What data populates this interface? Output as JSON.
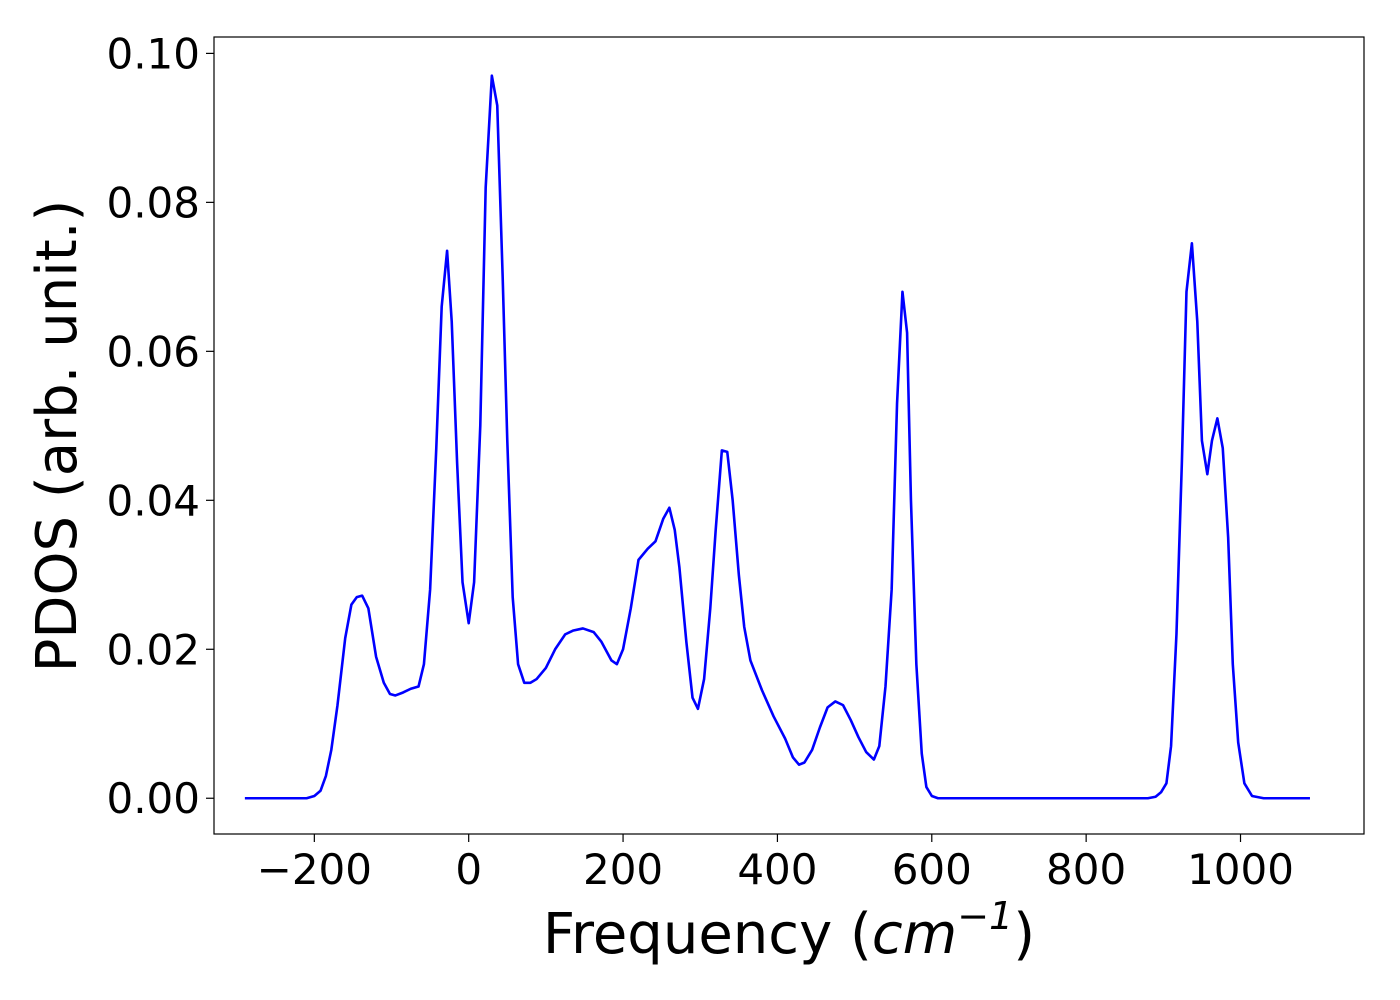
{
  "chart_data": {
    "type": "line",
    "title": "",
    "xlabel": "Frequency (",
    "xlabel_unit_base": "cm",
    "xlabel_unit_exp": "−1",
    "xlabel_close": ")",
    "ylabel": "PDOS (arb. unit.)",
    "xlim": [
      -330,
      1160
    ],
    "ylim": [
      -0.0048,
      0.1022
    ],
    "x_ticks": [
      -200,
      0,
      200,
      400,
      600,
      800,
      1000
    ],
    "x_tick_labels": [
      "−200",
      "0",
      "200",
      "400",
      "600",
      "800",
      "1000"
    ],
    "y_ticks": [
      0.0,
      0.02,
      0.04,
      0.06,
      0.08,
      0.1
    ],
    "y_tick_labels": [
      "0.00",
      "0.02",
      "0.04",
      "0.06",
      "0.08",
      "0.10"
    ],
    "grid": false,
    "legend": "none",
    "series": [
      {
        "color": "#0000ff",
        "x": [
          -290,
          -250,
          -210,
          -200,
          -192,
          -185,
          -178,
          -170,
          -160,
          -152,
          -145,
          -138,
          -130,
          -120,
          -110,
          -102,
          -95,
          -85,
          -75,
          -65,
          -58,
          -50,
          -42,
          -35,
          -28,
          -22,
          -15,
          -8,
          0,
          7,
          15,
          22,
          30,
          37,
          44,
          50,
          57,
          64,
          72,
          80,
          88,
          100,
          112,
          125,
          135,
          148,
          162,
          172,
          185,
          192,
          200,
          210,
          220,
          232,
          242,
          252,
          260,
          267,
          273,
          282,
          290,
          297,
          305,
          313,
          320,
          328,
          335,
          342,
          350,
          357,
          365,
          380,
          395,
          410,
          420,
          428,
          435,
          445,
          455,
          465,
          475,
          485,
          495,
          505,
          515,
          525,
          532,
          540,
          548,
          555,
          562,
          568,
          573,
          580,
          587,
          593,
          600,
          608,
          620,
          650,
          700,
          800,
          880,
          890,
          897,
          904,
          910,
          917,
          924,
          930,
          937,
          944,
          950,
          957,
          963,
          970,
          977,
          984,
          990,
          997,
          1005,
          1015,
          1030,
          1090
        ],
        "y": [
          0.0,
          0.0,
          0.0,
          0.0003,
          0.001,
          0.003,
          0.0065,
          0.0125,
          0.0215,
          0.026,
          0.027,
          0.0272,
          0.0255,
          0.019,
          0.0155,
          0.014,
          0.0138,
          0.0142,
          0.0147,
          0.015,
          0.018,
          0.028,
          0.047,
          0.066,
          0.0735,
          0.064,
          0.045,
          0.029,
          0.0235,
          0.029,
          0.05,
          0.082,
          0.097,
          0.093,
          0.07,
          0.048,
          0.027,
          0.018,
          0.0155,
          0.0155,
          0.016,
          0.0175,
          0.02,
          0.022,
          0.0225,
          0.0228,
          0.0223,
          0.021,
          0.0185,
          0.018,
          0.02,
          0.0255,
          0.032,
          0.0335,
          0.0345,
          0.0375,
          0.039,
          0.036,
          0.031,
          0.021,
          0.0135,
          0.012,
          0.016,
          0.0255,
          0.036,
          0.0467,
          0.0465,
          0.04,
          0.03,
          0.023,
          0.0185,
          0.0145,
          0.011,
          0.008,
          0.0055,
          0.0045,
          0.0048,
          0.0065,
          0.0095,
          0.0122,
          0.013,
          0.0125,
          0.0105,
          0.0082,
          0.0062,
          0.0052,
          0.007,
          0.015,
          0.028,
          0.053,
          0.068,
          0.0625,
          0.04,
          0.018,
          0.006,
          0.0015,
          0.0003,
          0.0,
          0.0,
          0.0,
          0.0,
          0.0,
          0.0,
          0.0002,
          0.0008,
          0.002,
          0.007,
          0.022,
          0.045,
          0.068,
          0.0745,
          0.064,
          0.048,
          0.0435,
          0.048,
          0.051,
          0.047,
          0.035,
          0.018,
          0.0075,
          0.002,
          0.0003,
          0.0,
          0.0
        ]
      }
    ]
  }
}
